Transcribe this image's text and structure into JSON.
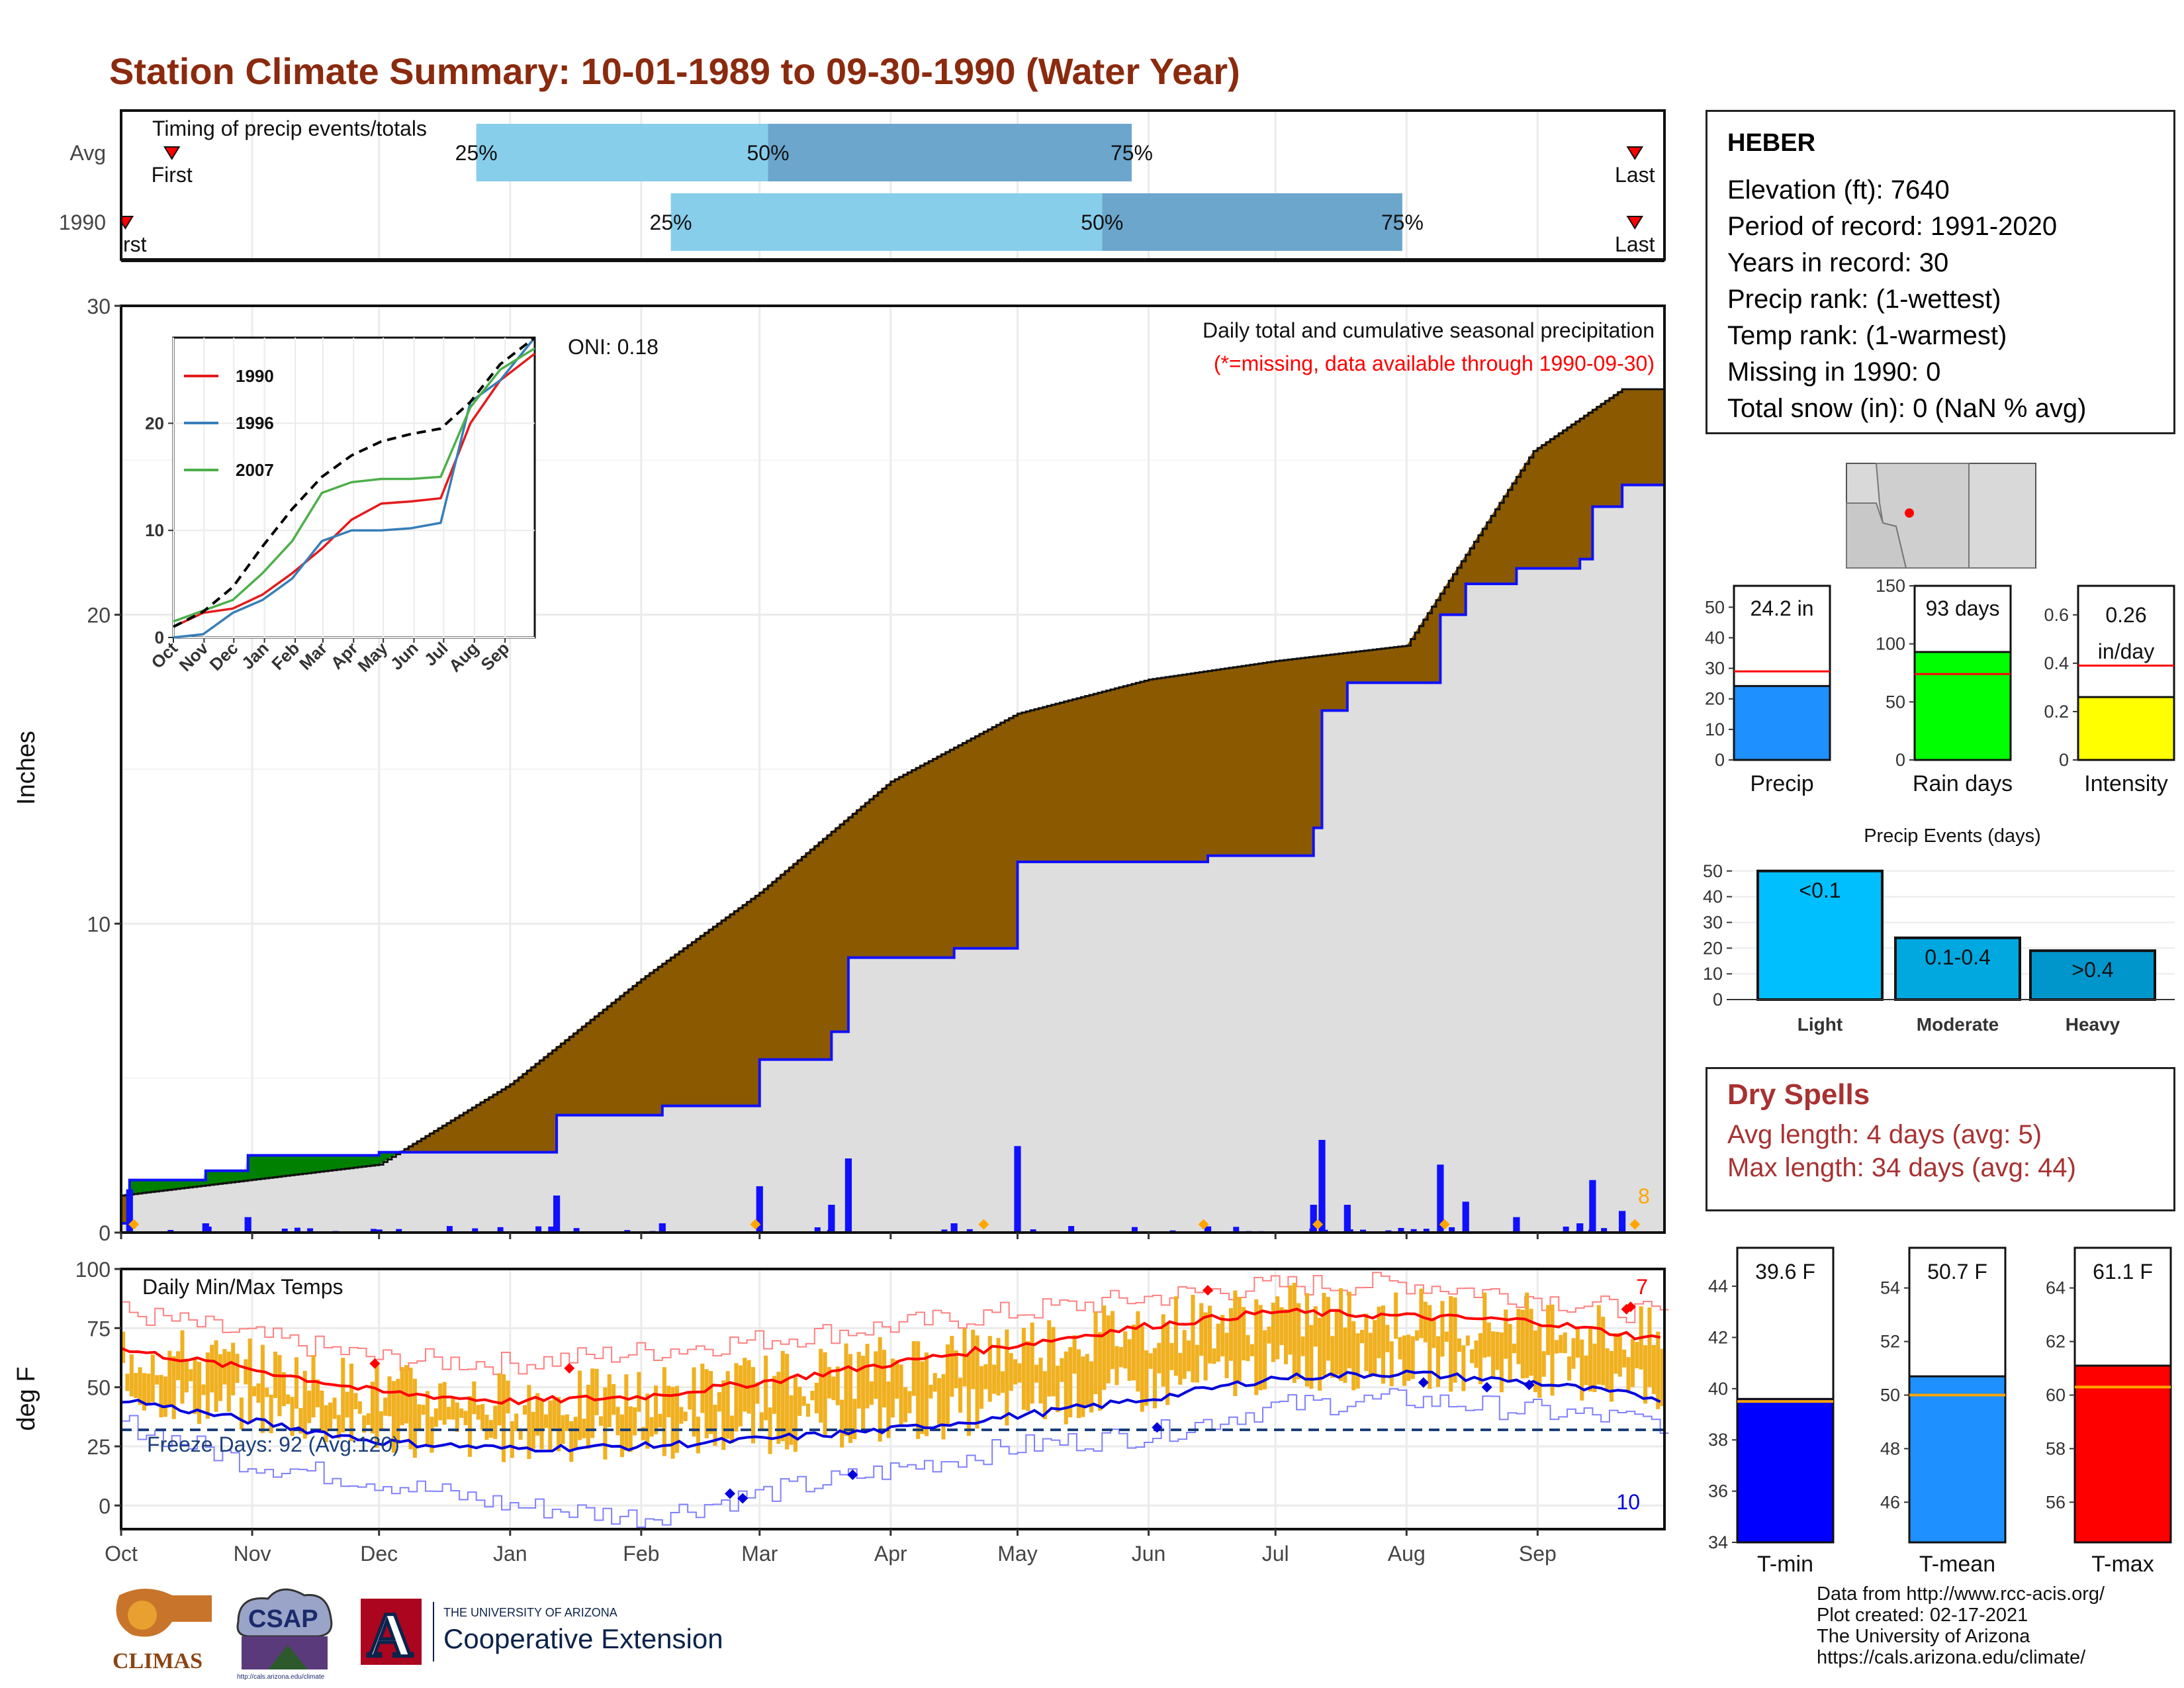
{
  "page": {
    "title": "Station Climate Summary: 10-01-1989 to 09-30-1990 (Water Year)",
    "title_color": "#8b2a0e"
  },
  "station": {
    "name": "HEBER",
    "lines": [
      "Elevation (ft): 7640",
      "Period of record: 1991-2020",
      "Years in record: 30",
      "Precip rank:  (1-wettest)",
      "Temp rank:  (1-warmest)",
      "Missing in 1990: 0",
      "Total snow (in): 0 (NaN % avg)"
    ]
  },
  "dry_spells": {
    "title": "Dry Spells",
    "avg_length": "Avg length: 4 days (avg: 5)",
    "max_length": "Max length: 34 days (avg: 44)"
  },
  "credits": {
    "lines": [
      "Data from http://www.rcc-acis.org/",
      "Plot created: 02-17-2021",
      "The University of Arizona",
      "https://cals.arizona.edu/climate/"
    ]
  },
  "logos": {
    "climas": "CLIMAS",
    "csap": "CSAP",
    "csap_url": "http://cals.arizona.edu/climate",
    "ua_small": "THE UNIVERSITY OF ARIZONA",
    "ua_big": "Cooperative Extension",
    "ua_letter": "A"
  },
  "chart_data": [
    {
      "id": "timing",
      "type": "bar",
      "title": "Timing of precip events/totals",
      "rows": [
        "Avg",
        "1990"
      ],
      "x_domain_days": [
        0,
        365
      ],
      "bars": [
        {
          "row": "Avg",
          "p25_day": 84,
          "p50_day": 153,
          "p75_day": 239,
          "first_day": 12,
          "last_day": 358
        },
        {
          "row": "1990",
          "p25_day": 130,
          "p50_day": 232,
          "p75_day": 303,
          "first_day": 1,
          "last_day": 358
        }
      ],
      "labels": {
        "p25": "25%",
        "p50": "50%",
        "p75": "75%",
        "first": "First",
        "last": "Last",
        "first_clipped": "rst"
      },
      "colors": {
        "lower": "#87ceeb",
        "upper": "#6ca6cd",
        "marker": "#ff0000"
      }
    },
    {
      "id": "precip",
      "type": "area",
      "title": "Daily total and cumulative seasonal precipitation",
      "subtitle": "(*=missing, data available through 1990-09-30)",
      "ylabel": "Inches",
      "ylim": [
        0,
        30
      ],
      "yticks": [
        0,
        10,
        20,
        30
      ],
      "oni": "ONI: 0.18",
      "corner_count": "8",
      "x_ticks": [
        "Oct",
        "Nov",
        "Dec",
        "Jan",
        "Feb",
        "Mar",
        "Apr",
        "May",
        "Jun",
        "Jul",
        "Aug",
        "Sep"
      ],
      "avg_cumulative": {
        "days": [
          0,
          61,
          92,
          123,
          151,
          182,
          212,
          243,
          273,
          304,
          334,
          355
        ],
        "values": [
          1.2,
          2.2,
          4.8,
          8.2,
          11.0,
          14.6,
          16.8,
          17.9,
          18.5,
          19.0,
          25.3,
          27.3
        ]
      },
      "obs_cumulative": {
        "days": [
          0,
          2,
          20,
          30,
          61,
          92,
          103,
          128,
          151,
          168,
          172,
          197,
          212,
          257,
          282,
          284,
          290,
          312,
          318,
          330,
          345,
          348,
          355,
          365
        ],
        "values": [
          0.3,
          1.7,
          2.0,
          2.5,
          2.6,
          2.6,
          3.8,
          4.1,
          5.6,
          6.5,
          8.9,
          9.2,
          12.0,
          12.2,
          13.1,
          16.9,
          17.8,
          20.0,
          21.0,
          21.5,
          21.8,
          23.5,
          24.2,
          24.2
        ]
      },
      "daily_markers_days": [
        3,
        150,
        204,
        256,
        283,
        313,
        358
      ],
      "colors": {
        "above_avg": "#8b5a00",
        "below_avg": "#008000",
        "obs": "#1010ff",
        "bars": "#1010ff"
      }
    },
    {
      "id": "inset",
      "type": "line",
      "xticks": [
        "Oct",
        "Nov",
        "Dec",
        "Jan",
        "Feb",
        "Mar",
        "Apr",
        "May",
        "Jun",
        "Jul",
        "Aug",
        "Sep"
      ],
      "ylim": [
        0,
        28
      ],
      "yticks": [
        0,
        10,
        20
      ],
      "series": [
        {
          "name": "1990",
          "color": "#e41a1c",
          "x": [
            0,
            30,
            60,
            90,
            120,
            150,
            180,
            210,
            240,
            270,
            300,
            330,
            365
          ],
          "y": [
            1,
            2.3,
            2.7,
            4.0,
            6.0,
            8.3,
            11.0,
            12.5,
            12.7,
            13.0,
            20.0,
            24.0,
            26.5
          ]
        },
        {
          "name": "1996",
          "color": "#377eb8",
          "x": [
            0,
            30,
            60,
            90,
            120,
            150,
            180,
            210,
            240,
            270,
            300,
            330,
            365
          ],
          "y": [
            0,
            0.3,
            2.3,
            3.5,
            5.5,
            9.0,
            10.0,
            10.0,
            10.2,
            10.7,
            22.0,
            24.0,
            28.0
          ]
        },
        {
          "name": "2007",
          "color": "#4daf4a",
          "x": [
            0,
            30,
            60,
            90,
            120,
            150,
            180,
            210,
            240,
            270,
            300,
            330,
            365
          ],
          "y": [
            1.5,
            2.5,
            3.5,
            6.0,
            9.0,
            13.5,
            14.5,
            14.8,
            14.8,
            15.0,
            21.5,
            25.0,
            27.0
          ]
        },
        {
          "color": "#000000",
          "dashed": true,
          "x": [
            0,
            30,
            60,
            90,
            120,
            150,
            180,
            210,
            240,
            270,
            300,
            330,
            365
          ],
          "y": [
            1.0,
            2.4,
            4.7,
            8.5,
            12.0,
            15.0,
            17.0,
            18.3,
            19.0,
            19.5,
            22.0,
            25.5,
            28.0
          ]
        }
      ]
    },
    {
      "id": "temps",
      "type": "line",
      "title": "Daily Min/Max Temps",
      "ylabel": "deg F",
      "ylim": [
        -10,
        100
      ],
      "yticks": [
        0,
        25,
        50,
        75,
        100
      ],
      "freeze_line": 32,
      "freeze_label": "Freeze Days: 92 (Avg:120)",
      "count_high": "7",
      "count_low": "10",
      "x_ticks": [
        "Oct",
        "Nov",
        "Dec",
        "Jan",
        "Feb",
        "Mar",
        "Apr",
        "May",
        "Jun",
        "Jul",
        "Aug",
        "Sep"
      ],
      "avg_max": {
        "days": [
          0,
          30,
          61,
          92,
          123,
          151,
          182,
          212,
          243,
          273,
          304,
          334,
          365
        ],
        "values": [
          66,
          58,
          48,
          44,
          46,
          52,
          60,
          68,
          76,
          82,
          80,
          78,
          70
        ]
      },
      "avg_min": {
        "days": [
          0,
          30,
          61,
          92,
          123,
          151,
          182,
          212,
          243,
          273,
          304,
          334,
          365
        ],
        "values": [
          45,
          36,
          27,
          24,
          25,
          28,
          32,
          38,
          45,
          54,
          56,
          52,
          45
        ]
      },
      "obs_max_envelope": {
        "days": [
          0,
          30,
          61,
          92,
          123,
          151,
          182,
          212,
          243,
          273,
          304,
          334,
          365
        ],
        "values": [
          82,
          72,
          62,
          60,
          65,
          70,
          76,
          82,
          88,
          93,
          94,
          88,
          80
        ]
      },
      "obs_min_envelope": {
        "days": [
          0,
          30,
          61,
          92,
          123,
          151,
          182,
          212,
          243,
          273,
          304,
          334,
          365
        ],
        "values": [
          35,
          18,
          10,
          0,
          -5,
          5,
          15,
          25,
          30,
          42,
          45,
          40,
          35
        ]
      },
      "colors": {
        "daily": "#f0b020",
        "avg_max": "#ff0000",
        "avg_min": "#0000dd",
        "freeze": "#1a3f7a"
      }
    },
    {
      "id": "summary_precip",
      "type": "bar",
      "panels": [
        {
          "label": "Precip",
          "value_label": "24.2 in",
          "value": 24.2,
          "avg": 29,
          "ymax": 57,
          "yticks": [
            0,
            10,
            20,
            30,
            40,
            50
          ],
          "color": "#1e90ff"
        },
        {
          "label": "Rain days",
          "value_label": "93 days",
          "value": 93,
          "avg": 74,
          "ymax": 150,
          "yticks": [
            0,
            50,
            100,
            150
          ],
          "color": "#00ff00"
        },
        {
          "label": "Intensity",
          "value_label": [
            "0.26",
            "in/day"
          ],
          "value": 0.26,
          "avg": 0.39,
          "ymax": 0.72,
          "yticks": [
            0.0,
            0.2,
            0.4,
            0.6
          ],
          "color": "#ffff00"
        }
      ]
    },
    {
      "id": "precip_events",
      "type": "bar",
      "title": "Precip Events (days)",
      "categories": [
        "Light",
        "Moderate",
        "Heavy"
      ],
      "bar_labels": [
        "<0.1",
        "0.1-0.4",
        ">0.4"
      ],
      "values": [
        50,
        24,
        19
      ],
      "ylim": [
        0,
        52
      ],
      "yticks": [
        0,
        10,
        20,
        30,
        40,
        50
      ],
      "colors": [
        "#00bfff",
        "#00a8e0",
        "#0096cc"
      ]
    },
    {
      "id": "summary_temp",
      "type": "bar",
      "panels": [
        {
          "label": "T-min",
          "value_label": "39.6 F",
          "value": 39.6,
          "avg": 39.5,
          "ylim": [
            34,
            45.5
          ],
          "yticks": [
            34,
            36,
            38,
            40,
            42,
            44
          ],
          "color": "#0000ff"
        },
        {
          "label": "T-mean",
          "value_label": "50.7 F",
          "value": 50.7,
          "avg": 50.0,
          "ylim": [
            44.5,
            55.5
          ],
          "yticks": [
            46,
            48,
            50,
            52,
            54
          ],
          "color": "#1e90ff"
        },
        {
          "label": "T-max",
          "value_label": "61.1 F",
          "value": 61.1,
          "avg": 60.3,
          "ylim": [
            54.5,
            65.5
          ],
          "yticks": [
            56,
            58,
            60,
            62,
            64
          ],
          "color": "#ff0000"
        }
      ]
    }
  ]
}
